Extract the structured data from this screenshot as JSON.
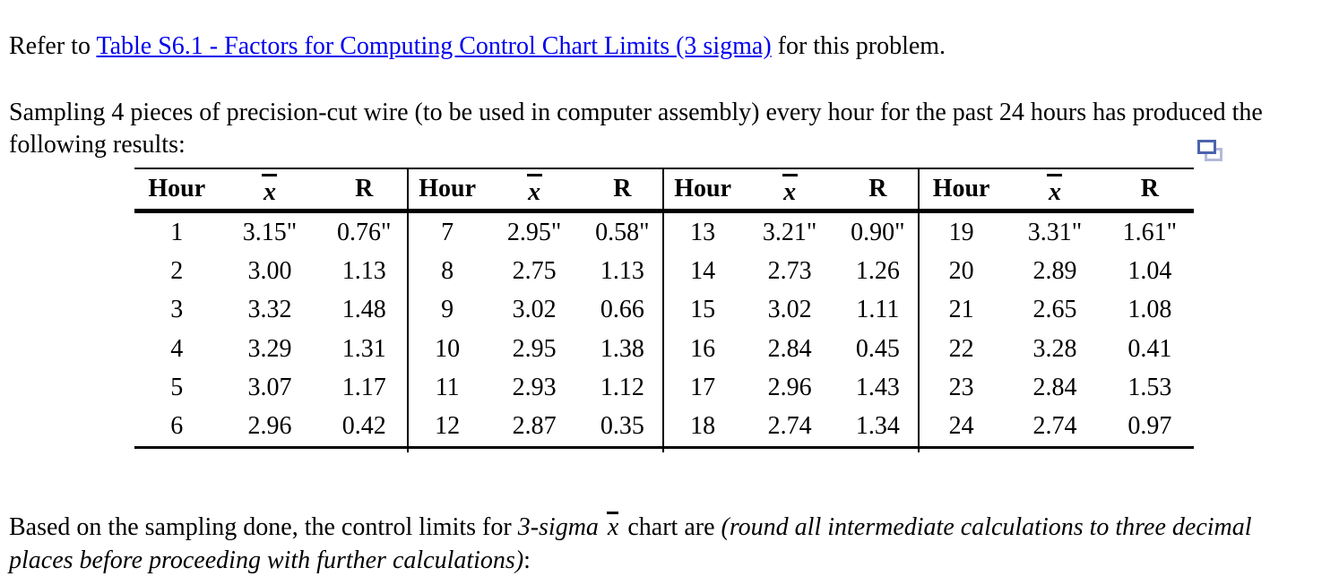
{
  "page": {
    "background": "#ffffff",
    "text_color": "#000000",
    "link_color": "#0000ee"
  },
  "intro": {
    "prefix": "Refer to ",
    "link_text": "Table S6.1 - Factors for Computing Control Chart Limits (3 sigma)",
    "suffix": " for this problem."
  },
  "problem_statement": "Sampling 4 pieces of precision-cut wire (to be used in computer assembly) every hour for the past 24 hours has produced the following results:",
  "icons": {
    "duplicate_icon": {
      "meaning": "duplicate-window",
      "front_color": "#4d63ae",
      "back_color": "#b3bada"
    }
  },
  "table": {
    "headers": {
      "hour": "Hour",
      "xbar_char": "x",
      "range": "R"
    },
    "groups": [
      {
        "rows": [
          [
            "1",
            "3.15\"",
            "0.76\""
          ],
          [
            "2",
            "3.00",
            "1.13"
          ],
          [
            "3",
            "3.32",
            "1.48"
          ],
          [
            "4",
            "3.29",
            "1.31"
          ],
          [
            "5",
            "3.07",
            "1.17"
          ],
          [
            "6",
            "2.96",
            "0.42"
          ]
        ]
      },
      {
        "rows": [
          [
            "7",
            "2.95\"",
            "0.58\""
          ],
          [
            "8",
            "2.75",
            "1.13"
          ],
          [
            "9",
            "3.02",
            "0.66"
          ],
          [
            "10",
            "2.95",
            "1.38"
          ],
          [
            "11",
            "2.93",
            "1.12"
          ],
          [
            "12",
            "2.87",
            "0.35"
          ]
        ]
      },
      {
        "rows": [
          [
            "13",
            "3.21\"",
            "0.90\""
          ],
          [
            "14",
            "2.73",
            "1.26"
          ],
          [
            "15",
            "3.02",
            "1.11"
          ],
          [
            "16",
            "2.84",
            "0.45"
          ],
          [
            "17",
            "2.96",
            "1.43"
          ],
          [
            "18",
            "2.74",
            "1.34"
          ]
        ]
      },
      {
        "rows": [
          [
            "19",
            "3.31\"",
            "1.61\""
          ],
          [
            "20",
            "2.89",
            "1.04"
          ],
          [
            "21",
            "2.65",
            "1.08"
          ],
          [
            "22",
            "3.28",
            "0.41"
          ],
          [
            "23",
            "2.84",
            "1.53"
          ],
          [
            "24",
            "2.74",
            "0.97"
          ]
        ]
      }
    ]
  },
  "question": {
    "part1": "Based on the sampling done, the control limits for ",
    "italic1": "3-sigma ",
    "xbar_char": "x",
    "part2": " chart are ",
    "italic2": "(round all intermediate calculations to three decimal places before proceeding with further calculations)",
    "part3": ":"
  }
}
